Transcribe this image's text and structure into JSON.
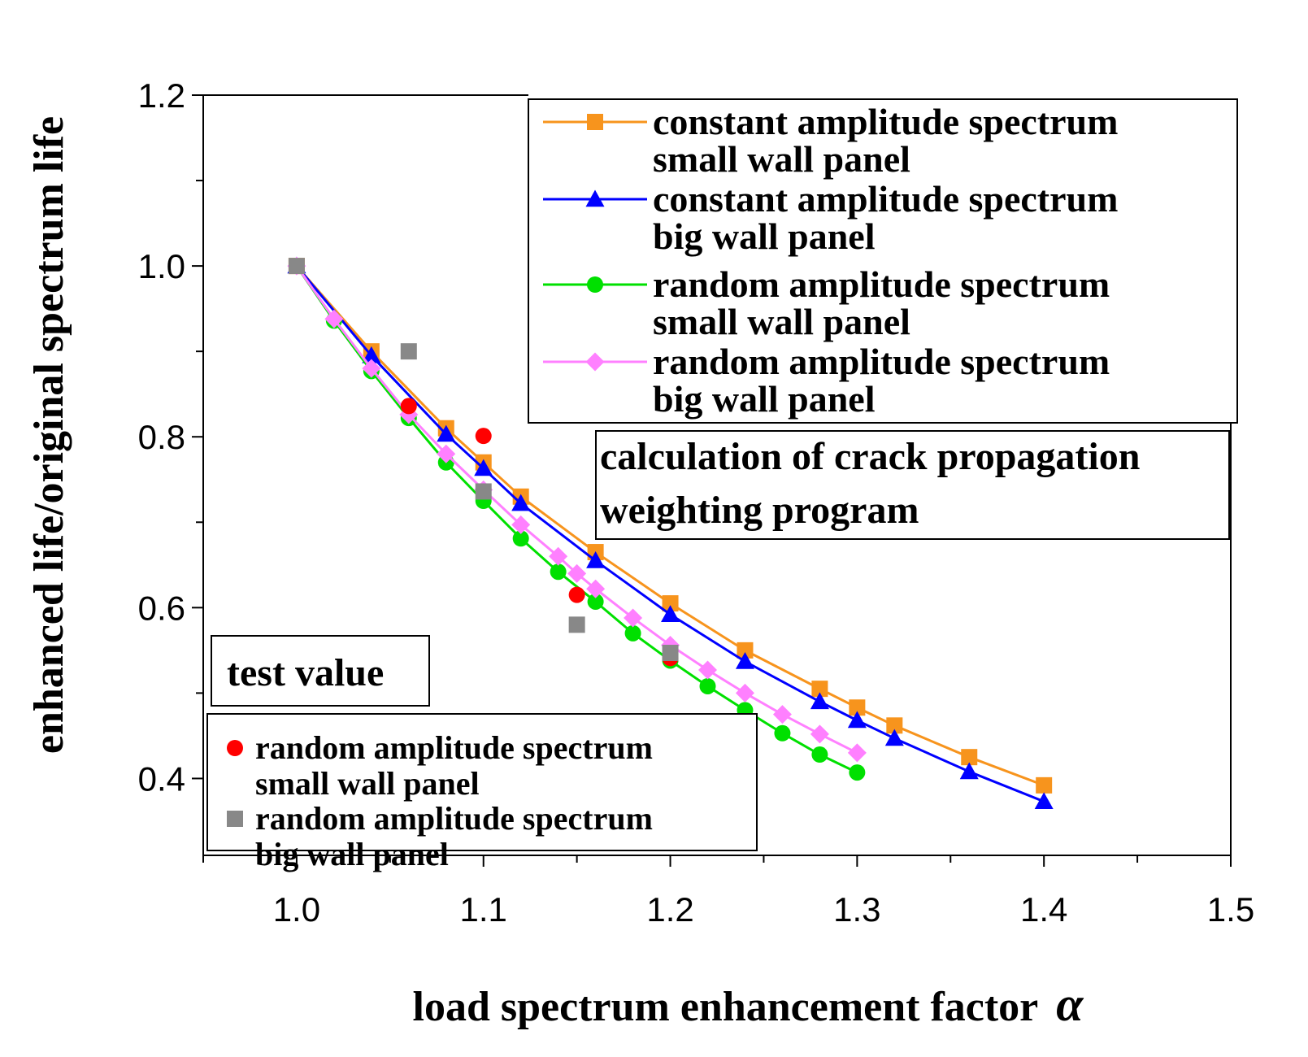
{
  "chart_data": {
    "type": "line",
    "xlabel": "load spectrum enhancement factor",
    "xlabel_symbol": "α",
    "ylabel": "enhanced life/original spectrum life",
    "xlim": [
      0.95,
      1.5
    ],
    "ylim": [
      0.31,
      1.2
    ],
    "x_ticks": [
      "1.0",
      "1.1",
      "1.2",
      "1.3",
      "1.4",
      "1.5"
    ],
    "y_ticks": [
      "0.4",
      "0.6",
      "0.8",
      "1.0",
      "1.2"
    ],
    "calc_title_lines": [
      "calculation of crack propagation",
      "weighting program"
    ],
    "series": [
      {
        "name_lines": [
          "constant amplitude spectrum",
          "small wall panel"
        ],
        "color": "#f7941d",
        "marker": "square",
        "x": [
          1.0,
          1.04,
          1.08,
          1.1,
          1.12,
          1.16,
          1.2,
          1.24,
          1.28,
          1.3,
          1.32,
          1.36,
          1.4
        ],
        "y": [
          1.0,
          0.9,
          0.81,
          0.77,
          0.73,
          0.665,
          0.605,
          0.55,
          0.505,
          0.483,
          0.462,
          0.425,
          0.392
        ]
      },
      {
        "name_lines": [
          "constant amplitude spectrum",
          "big wall panel"
        ],
        "color": "#0000ff",
        "marker": "triangle",
        "x": [
          1.0,
          1.04,
          1.08,
          1.1,
          1.12,
          1.16,
          1.2,
          1.24,
          1.28,
          1.3,
          1.32,
          1.36,
          1.4
        ],
        "y": [
          1.0,
          0.895,
          0.803,
          0.763,
          0.722,
          0.655,
          0.592,
          0.537,
          0.49,
          0.468,
          0.447,
          0.408,
          0.373
        ]
      },
      {
        "name_lines": [
          "random amplitude spectrum",
          "small wall panel"
        ],
        "color": "#00e000",
        "marker": "circle",
        "x": [
          1.0,
          1.02,
          1.04,
          1.06,
          1.08,
          1.1,
          1.12,
          1.14,
          1.16,
          1.18,
          1.2,
          1.22,
          1.24,
          1.26,
          1.28,
          1.3
        ],
        "y": [
          1.0,
          0.936,
          0.877,
          0.822,
          0.77,
          0.725,
          0.681,
          0.642,
          0.607,
          0.57,
          0.538,
          0.508,
          0.48,
          0.453,
          0.428,
          0.407
        ]
      },
      {
        "name_lines": [
          "random amplitude spectrum",
          "big wall panel"
        ],
        "color": "#ff80ff",
        "marker": "diamond",
        "x": [
          1.0,
          1.02,
          1.04,
          1.06,
          1.08,
          1.1,
          1.12,
          1.14,
          1.15,
          1.16,
          1.18,
          1.2,
          1.22,
          1.24,
          1.26,
          1.28,
          1.3
        ],
        "y": [
          1.0,
          0.938,
          0.88,
          0.826,
          0.78,
          0.738,
          0.697,
          0.66,
          0.64,
          0.622,
          0.588,
          0.556,
          0.527,
          0.5,
          0.475,
          0.452,
          0.43
        ]
      }
    ],
    "test_values": {
      "title": "test value",
      "series": [
        {
          "name_lines": [
            "random amplitude spectrum",
            "small wall panel"
          ],
          "color": "#ff0000",
          "marker": "circle",
          "x": [
            1.06,
            1.1,
            1.15,
            1.2
          ],
          "y": [
            0.836,
            0.801,
            0.615,
            0.541
          ]
        },
        {
          "name_lines": [
            "random amplitude spectrum",
            "big wall panel"
          ],
          "color": "#888888",
          "marker": "square",
          "x": [
            1.0,
            1.06,
            1.1,
            1.15,
            1.2
          ],
          "y": [
            1.0,
            0.9,
            0.736,
            0.58,
            0.547
          ]
        }
      ]
    }
  }
}
